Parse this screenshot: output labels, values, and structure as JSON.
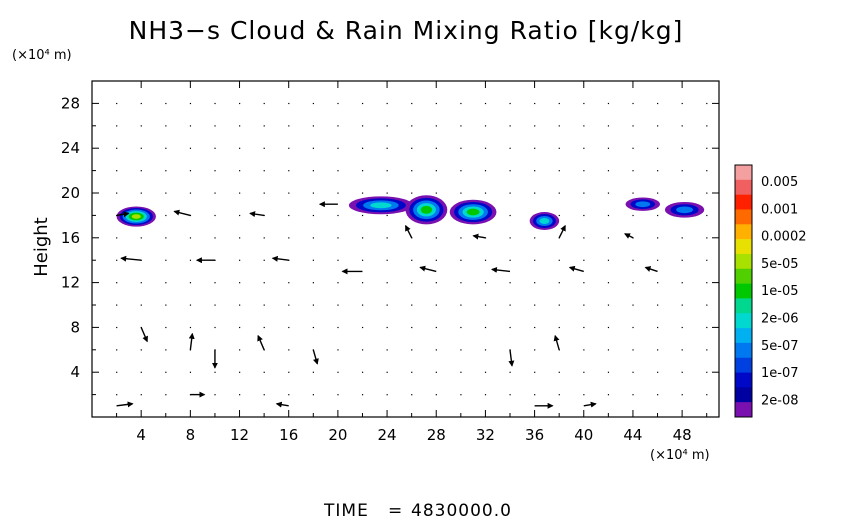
{
  "chart_data": {
    "type": "quiver+contour",
    "title": "NH3−s Cloud & Rain Mixing Ratio [kg/kg]",
    "x_unit": "(×10⁴ m)",
    "y_unit": "(×10⁴ m)",
    "ylabel": "Height",
    "xlim": [
      0,
      51
    ],
    "ylim": [
      0,
      30
    ],
    "x_ticks": [
      "4",
      "8",
      "12",
      "16",
      "20",
      "24",
      "28",
      "32",
      "36",
      "40",
      "44",
      "48"
    ],
    "y_ticks": [
      "4",
      "8",
      "12",
      "16",
      "20",
      "24",
      "28"
    ],
    "colorbar": {
      "labels": [
        "0.005",
        "0.001",
        "0.0002",
        "5e-05",
        "1e-05",
        "2e-06",
        "5e-07",
        "1e-07",
        "2e-08"
      ],
      "colors": [
        "#f4a0a0",
        "#f06060",
        "#ff2000",
        "#ff6a00",
        "#ffb000",
        "#e8e000",
        "#a8e000",
        "#50d000",
        "#00c800",
        "#00d890",
        "#00d8d0",
        "#00b0f0",
        "#0078f0",
        "#0040e0",
        "#0008c8",
        "#0000a0",
        "#7a10b0"
      ]
    },
    "cloud_regions": [
      {
        "x_center": 3.6,
        "y_center": 17.9,
        "x_halfwidth": 1.6,
        "y_halfwidth": 0.9,
        "peak": "5e-05"
      },
      {
        "x_center": 23.5,
        "y_center": 18.9,
        "x_halfwidth": 2.6,
        "y_halfwidth": 0.8,
        "peak": "2e-06"
      },
      {
        "x_center": 27.2,
        "y_center": 18.5,
        "x_halfwidth": 1.7,
        "y_halfwidth": 1.3,
        "peak": "1e-05"
      },
      {
        "x_center": 31.0,
        "y_center": 18.3,
        "x_halfwidth": 1.9,
        "y_halfwidth": 1.1,
        "peak": "1e-05"
      },
      {
        "x_center": 36.8,
        "y_center": 17.5,
        "x_halfwidth": 1.2,
        "y_halfwidth": 0.8,
        "peak": "2e-06"
      },
      {
        "x_center": 44.8,
        "y_center": 19.0,
        "x_halfwidth": 1.4,
        "y_halfwidth": 0.6,
        "peak": "5e-07"
      },
      {
        "x_center": 48.2,
        "y_center": 18.5,
        "x_halfwidth": 1.6,
        "y_halfwidth": 0.7,
        "peak": "5e-07"
      }
    ],
    "wind_vectors": [
      {
        "x": 2,
        "y": 18,
        "u": 0.6,
        "v": 0.1
      },
      {
        "x": 8,
        "y": 18,
        "u": -0.8,
        "v": 0.2
      },
      {
        "x": 14,
        "y": 18,
        "u": -0.7,
        "v": 0.1
      },
      {
        "x": 20,
        "y": 19,
        "u": -0.9,
        "v": 0.0
      },
      {
        "x": 26,
        "y": 16,
        "u": -0.3,
        "v": 0.6
      },
      {
        "x": 32,
        "y": 16,
        "u": -0.6,
        "v": 0.1
      },
      {
        "x": 38,
        "y": 16,
        "u": 0.3,
        "v": 0.6
      },
      {
        "x": 44,
        "y": 16,
        "u": -0.4,
        "v": 0.2
      },
      {
        "x": 4,
        "y": 14,
        "u": -1.0,
        "v": 0.1
      },
      {
        "x": 10,
        "y": 14,
        "u": -0.9,
        "v": 0.0
      },
      {
        "x": 16,
        "y": 14,
        "u": -0.8,
        "v": 0.1
      },
      {
        "x": 22,
        "y": 13,
        "u": -1.0,
        "v": 0.0
      },
      {
        "x": 28,
        "y": 13,
        "u": -0.8,
        "v": 0.2
      },
      {
        "x": 34,
        "y": 13,
        "u": -0.9,
        "v": 0.1
      },
      {
        "x": 40,
        "y": 13,
        "u": -0.7,
        "v": 0.2
      },
      {
        "x": 46,
        "y": 13,
        "u": -0.6,
        "v": 0.2
      },
      {
        "x": 4,
        "y": 8,
        "u": 0.3,
        "v": -0.7
      },
      {
        "x": 8,
        "y": 6,
        "u": 0.1,
        "v": 0.8
      },
      {
        "x": 10,
        "y": 6,
        "u": 0.0,
        "v": -0.9
      },
      {
        "x": 14,
        "y": 6,
        "u": -0.3,
        "v": 0.7
      },
      {
        "x": 18,
        "y": 6,
        "u": 0.2,
        "v": -0.7
      },
      {
        "x": 34,
        "y": 6,
        "u": 0.1,
        "v": -0.8
      },
      {
        "x": 38,
        "y": 6,
        "u": -0.2,
        "v": 0.7
      },
      {
        "x": 2,
        "y": 1,
        "u": 0.8,
        "v": 0.1
      },
      {
        "x": 8,
        "y": 2,
        "u": 0.7,
        "v": 0.0
      },
      {
        "x": 16,
        "y": 1,
        "u": -0.6,
        "v": 0.1
      },
      {
        "x": 36,
        "y": 1,
        "u": 0.9,
        "v": 0.0
      },
      {
        "x": 40,
        "y": 1,
        "u": 0.6,
        "v": 0.1
      }
    ]
  },
  "footer": {
    "time_label": "TIME",
    "equals": "=",
    "time_value": "4830000.0"
  }
}
